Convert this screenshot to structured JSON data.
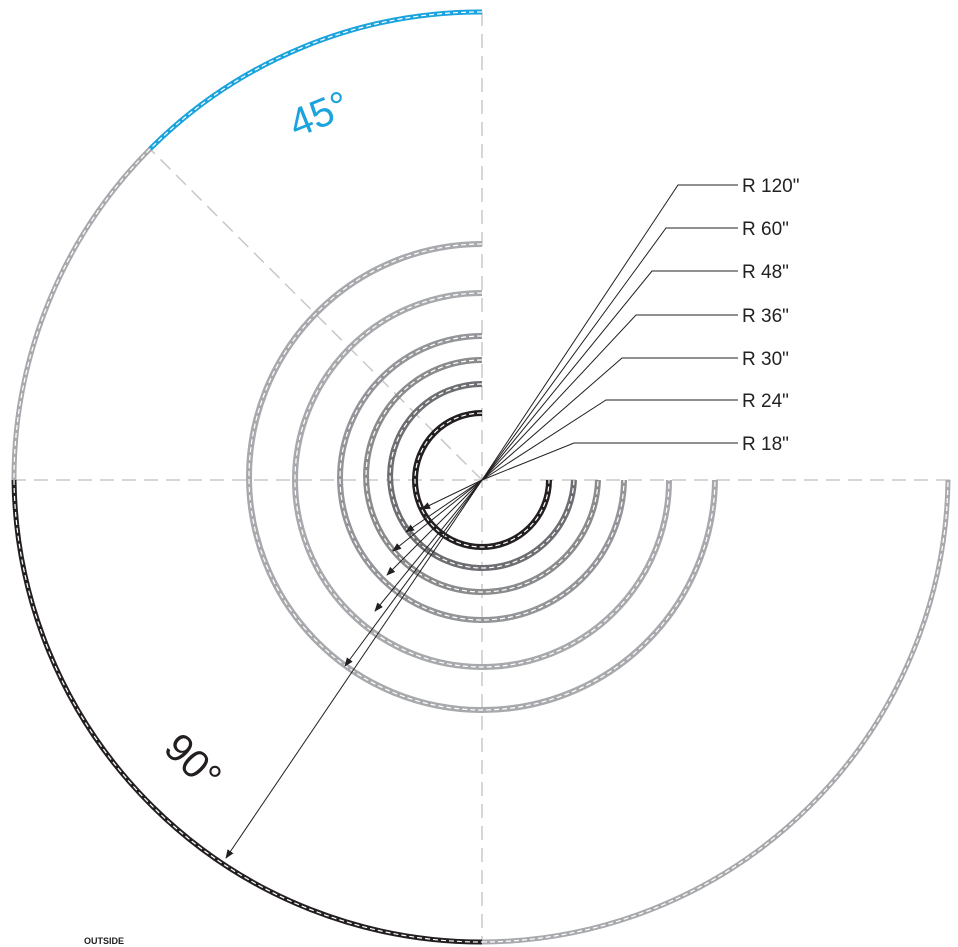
{
  "radius_labels": [
    "R 120\"",
    "R 60\"",
    "R 48\"",
    "R 36\"",
    "R 30\"",
    "R 24\"",
    "R 18\""
  ],
  "angle_labels": {
    "top": "45°",
    "bottom": "90°"
  },
  "corner_label": "OUTSIDE",
  "colors": {
    "highlight": "#1aa3dc",
    "dark": "#231f20",
    "mid": "#6d6e71",
    "light": "#a7a9ac",
    "guide": "#c8c8c8"
  }
}
